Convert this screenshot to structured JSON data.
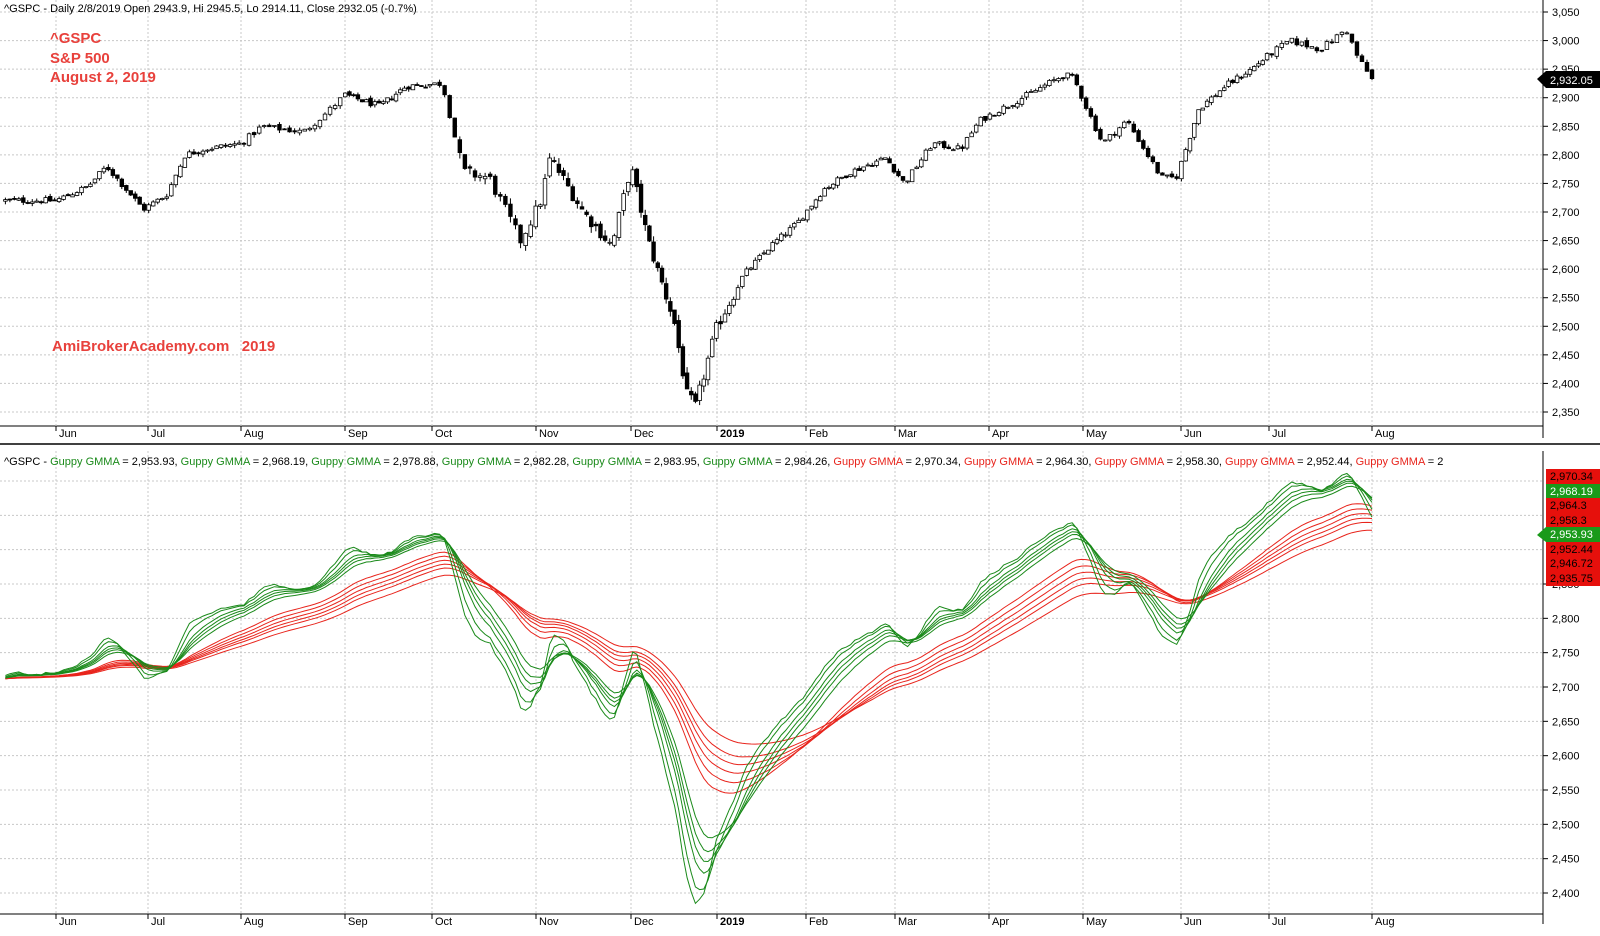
{
  "upper_panel": {
    "header": "^GSPC - Daily 2/8/2019 Open 2943.9, Hi 2945.5, Lo 2914.11, Close 2932.05 (-0.7%)",
    "watermark_lines": [
      "^GSPC",
      "S&P 500",
      "August 2, 2019"
    ],
    "site_label": "AmiBrokerAcademy.com   2019",
    "last_price_tag": "2,932.05"
  },
  "lower_panel": {
    "header_prefix": "^GSPC - ",
    "gmma_label": "Guppy GMMA",
    "gmma_values_short": [
      "2,953.93",
      "2,968.19",
      "2,978.88",
      "2,982.28",
      "2,983.95",
      "2,984.26"
    ],
    "gmma_values_long": [
      "2,970.34",
      "2,964.30",
      "2,958.30",
      "2,952.44",
      "2"
    ],
    "value_tags": [
      {
        "text": "2,970.34",
        "color": "red"
      },
      {
        "text": "2,968.19",
        "color": "green"
      },
      {
        "text": "2,964.3",
        "color": "red"
      },
      {
        "text": "2,958.3",
        "color": "red"
      },
      {
        "text": "2,953.93",
        "color": "green"
      },
      {
        "text": "2,952.44",
        "color": "red"
      },
      {
        "text": "2,946.72",
        "color": "red"
      },
      {
        "text": "2,935.75",
        "color": "red"
      }
    ]
  },
  "colors": {
    "short_ema": "#1a8a1a",
    "long_ema": "#e8241c",
    "watermark": "#e8413c",
    "grid": "#c8c8c8",
    "candle": "#000000"
  },
  "chart_data": [
    {
      "type": "candlestick",
      "title": "^GSPC - Daily 2/8/2019 Open 2943.9, Hi 2945.5, Lo 2914.11, Close 2932.05 (-0.7%)",
      "x_tick_labels": [
        "Jun",
        "Jul",
        "Aug",
        "Sep",
        "Oct",
        "Nov",
        "Dec",
        "2019",
        "Feb",
        "Mar",
        "Apr",
        "May",
        "Jun",
        "Jul",
        "Aug"
      ],
      "y_tick_labels": [
        "3,050",
        "3,000",
        "2,950",
        "2,900",
        "2,850",
        "2,800",
        "2,750",
        "2,700",
        "2,650",
        "2,600",
        "2,550",
        "2,500",
        "2,450",
        "2,400",
        "2,350"
      ],
      "ylim": [
        2320,
        3060
      ],
      "grid": true,
      "close_path": [
        {
          "x": 0,
          "y": 2720
        },
        {
          "x": 0.35,
          "y": 2745
        },
        {
          "x": 0.55,
          "y": 2780
        },
        {
          "x": 0.95,
          "y": 2705
        },
        {
          "x": 1.2,
          "y": 2730
        },
        {
          "x": 1.4,
          "y": 2800
        },
        {
          "x": 1.6,
          "y": 2810
        },
        {
          "x": 2.0,
          "y": 2820
        },
        {
          "x": 2.2,
          "y": 2850
        },
        {
          "x": 2.6,
          "y": 2840
        },
        {
          "x": 2.8,
          "y": 2870
        },
        {
          "x": 3.0,
          "y": 2905
        },
        {
          "x": 3.4,
          "y": 2885
        },
        {
          "x": 3.7,
          "y": 2920
        },
        {
          "x": 4.1,
          "y": 2925
        },
        {
          "x": 4.3,
          "y": 2770
        },
        {
          "x": 4.55,
          "y": 2760
        },
        {
          "x": 4.85,
          "y": 2650
        },
        {
          "x": 5.05,
          "y": 2720
        },
        {
          "x": 5.15,
          "y": 2795
        },
        {
          "x": 5.5,
          "y": 2700
        },
        {
          "x": 5.8,
          "y": 2640
        },
        {
          "x": 6.0,
          "y": 2780
        },
        {
          "x": 6.2,
          "y": 2650
        },
        {
          "x": 6.5,
          "y": 2510
        },
        {
          "x": 6.65,
          "y": 2380
        },
        {
          "x": 6.75,
          "y": 2360
        },
        {
          "x": 7.0,
          "y": 2500
        },
        {
          "x": 7.3,
          "y": 2590
        },
        {
          "x": 7.6,
          "y": 2640
        },
        {
          "x": 7.9,
          "y": 2680
        },
        {
          "x": 8.2,
          "y": 2740
        },
        {
          "x": 8.5,
          "y": 2770
        },
        {
          "x": 8.9,
          "y": 2795
        },
        {
          "x": 9.1,
          "y": 2750
        },
        {
          "x": 9.4,
          "y": 2820
        },
        {
          "x": 9.7,
          "y": 2810
        },
        {
          "x": 9.9,
          "y": 2860
        },
        {
          "x": 10.3,
          "y": 2895
        },
        {
          "x": 10.8,
          "y": 2940
        },
        {
          "x": 10.9,
          "y": 2935
        },
        {
          "x": 11.2,
          "y": 2820
        },
        {
          "x": 11.45,
          "y": 2860
        },
        {
          "x": 11.8,
          "y": 2760
        },
        {
          "x": 11.95,
          "y": 2760
        },
        {
          "x": 12.2,
          "y": 2880
        },
        {
          "x": 12.5,
          "y": 2920
        },
        {
          "x": 12.8,
          "y": 2950
        },
        {
          "x": 13.2,
          "y": 3000
        },
        {
          "x": 13.5,
          "y": 2985
        },
        {
          "x": 13.75,
          "y": 3020
        },
        {
          "x": 13.85,
          "y": 2975
        },
        {
          "x": 14.0,
          "y": 2932
        }
      ]
    },
    {
      "type": "line",
      "title": "^GSPC - Guppy GMMA",
      "x_tick_labels": [
        "Jun",
        "Jul",
        "Aug",
        "Sep",
        "Oct",
        "Nov",
        "Dec",
        "2019",
        "Feb",
        "Mar",
        "Apr",
        "May",
        "Jun",
        "Jul",
        "Aug"
      ],
      "y_tick_labels": [
        "2,850",
        "2,800",
        "2,750",
        "2,700",
        "2,650",
        "2,600",
        "2,550",
        "2,500",
        "2,450",
        "2,400"
      ],
      "ylim": [
        2380,
        3030
      ],
      "grid": true,
      "series": [
        {
          "group": "short",
          "last_value": 2953.93
        },
        {
          "group": "short",
          "last_value": 2968.19
        },
        {
          "group": "short",
          "last_value": 2978.88
        },
        {
          "group": "short",
          "last_value": 2982.28
        },
        {
          "group": "short",
          "last_value": 2983.95
        },
        {
          "group": "short",
          "last_value": 2984.26
        },
        {
          "group": "long",
          "last_value": 2970.34
        },
        {
          "group": "long",
          "last_value": 2964.3
        },
        {
          "group": "long",
          "last_value": 2958.3
        },
        {
          "group": "long",
          "last_value": 2952.44
        },
        {
          "group": "long",
          "last_value": 2946.72
        },
        {
          "group": "long",
          "last_value": 2935.75
        }
      ]
    }
  ]
}
